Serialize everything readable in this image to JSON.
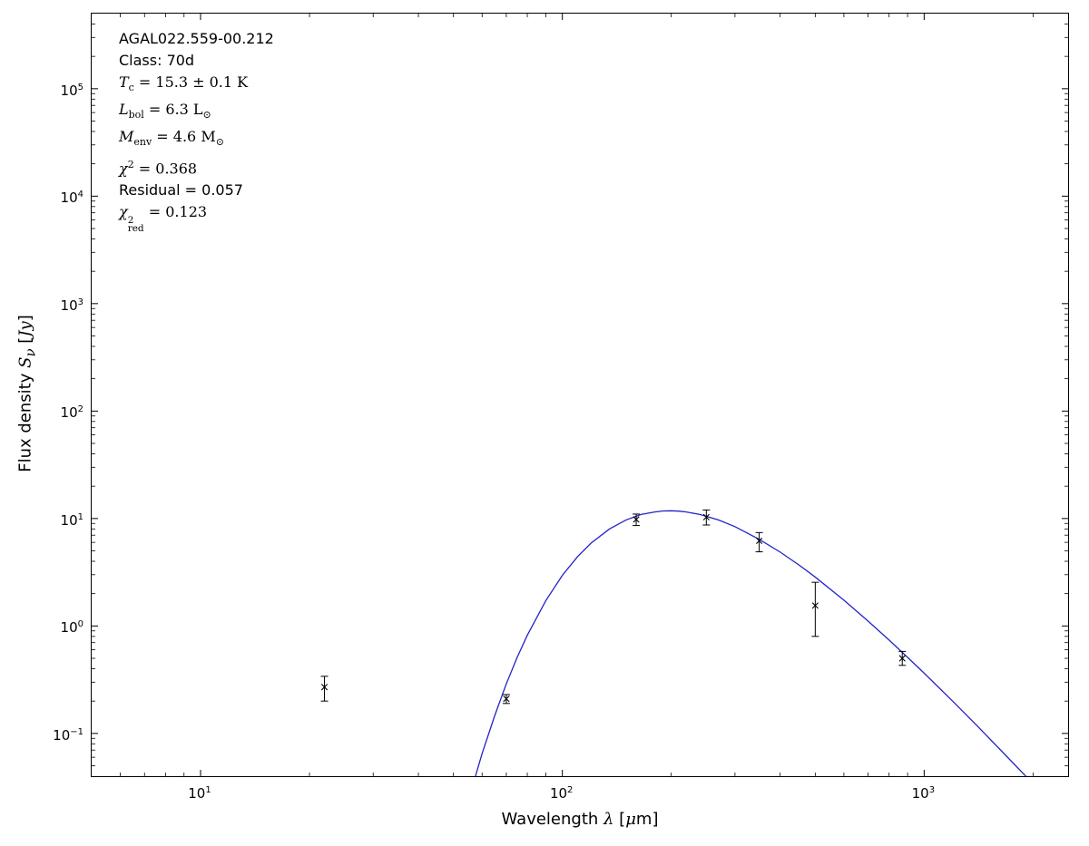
{
  "figure": {
    "labels": {
      "x_pre": "Wavelength ",
      "x_lambda": "λ",
      "x_bracket_open": " [",
      "x_mu": "μ",
      "x_close": "m]",
      "y_pre": "Flux density ",
      "y_sym": "S",
      "y_sym_sub": "ν",
      "y_bracket_open": " [",
      "y_unit": "Jy",
      "y_close": "]"
    },
    "annotations": {
      "source_name": "AGAL022.559-00.212",
      "class_label": "Class: 70d",
      "t_dust": {
        "sym": "T",
        "sub": "c",
        "rest": " = 15.3 ± 0.1 K"
      },
      "l_bol": {
        "sym": "L",
        "sub": "bol",
        "rest": " = 6.3 ",
        "unit": "L",
        "unit_sub": "⊙"
      },
      "m_env": {
        "sym": "M",
        "sub": "env",
        "rest": " = 4.6 ",
        "unit": "M",
        "unit_sub": "⊙"
      },
      "chi2": {
        "sym": "χ",
        "sup": "2",
        "rest": " = 0.368"
      },
      "residual": "Residual = 0.057",
      "chi2_red": {
        "sym": "χ",
        "sup": "2",
        "sub": "red",
        "rest": " = 0.123"
      }
    }
  },
  "chart_data": {
    "type": "line",
    "title": "",
    "xlabel": "Wavelength λ [μm]",
    "ylabel": "Flux density S_ν [Jy]",
    "xscale": "log",
    "yscale": "log",
    "grid": false,
    "legend": "none",
    "xlim": [
      5,
      2500
    ],
    "ylim": [
      0.04,
      500000
    ],
    "tick_base": "10",
    "x_tick_exponents": [
      1,
      2,
      3
    ],
    "y_tick_exponents": [
      5,
      4,
      3,
      2,
      1,
      0,
      -1
    ],
    "fit_curve": {
      "name": "modified-blackbody-fit",
      "color": "#2222cc",
      "points": [
        [
          55,
          0.024
        ],
        [
          58,
          0.044
        ],
        [
          60,
          0.065
        ],
        [
          65,
          0.146
        ],
        [
          70,
          0.29
        ],
        [
          75,
          0.51
        ],
        [
          80,
          0.82
        ],
        [
          90,
          1.72
        ],
        [
          100,
          2.96
        ],
        [
          110,
          4.39
        ],
        [
          120,
          5.9
        ],
        [
          135,
          8.0
        ],
        [
          150,
          9.7
        ],
        [
          165,
          10.9
        ],
        [
          180,
          11.5
        ],
        [
          190,
          11.76
        ],
        [
          200,
          11.8
        ],
        [
          210,
          11.72
        ],
        [
          220,
          11.5
        ],
        [
          240,
          10.9
        ],
        [
          270,
          9.7
        ],
        [
          300,
          8.4
        ],
        [
          350,
          6.4
        ],
        [
          400,
          4.87
        ],
        [
          450,
          3.71
        ],
        [
          500,
          2.85
        ],
        [
          600,
          1.74
        ],
        [
          700,
          1.11
        ],
        [
          800,
          0.74
        ],
        [
          900,
          0.51
        ],
        [
          1000,
          0.364
        ],
        [
          1200,
          0.199
        ],
        [
          1400,
          0.118
        ],
        [
          1700,
          0.06
        ],
        [
          2000,
          0.034
        ],
        [
          2500,
          0.015
        ]
      ]
    },
    "data_points": {
      "marker": "x",
      "color": "#000000",
      "points": [
        {
          "wavelength_um": 22,
          "flux_jy": 0.27,
          "err_plus": 0.07,
          "err_minus": 0.07
        },
        {
          "wavelength_um": 70,
          "flux_jy": 0.21,
          "err_plus": 0.02,
          "err_minus": 0.02
        },
        {
          "wavelength_um": 160,
          "flux_jy": 9.8,
          "err_plus": 1.2,
          "err_minus": 1.2
        },
        {
          "wavelength_um": 250,
          "flux_jy": 10.3,
          "err_plus": 1.7,
          "err_minus": 1.6
        },
        {
          "wavelength_um": 350,
          "flux_jy": 6.2,
          "err_plus": 1.2,
          "err_minus": 1.3
        },
        {
          "wavelength_um": 500,
          "flux_jy": 1.55,
          "err_plus": 1.0,
          "err_minus": 0.75
        },
        {
          "wavelength_um": 870,
          "flux_jy": 0.5,
          "err_plus": 0.08,
          "err_minus": 0.07
        }
      ]
    }
  }
}
